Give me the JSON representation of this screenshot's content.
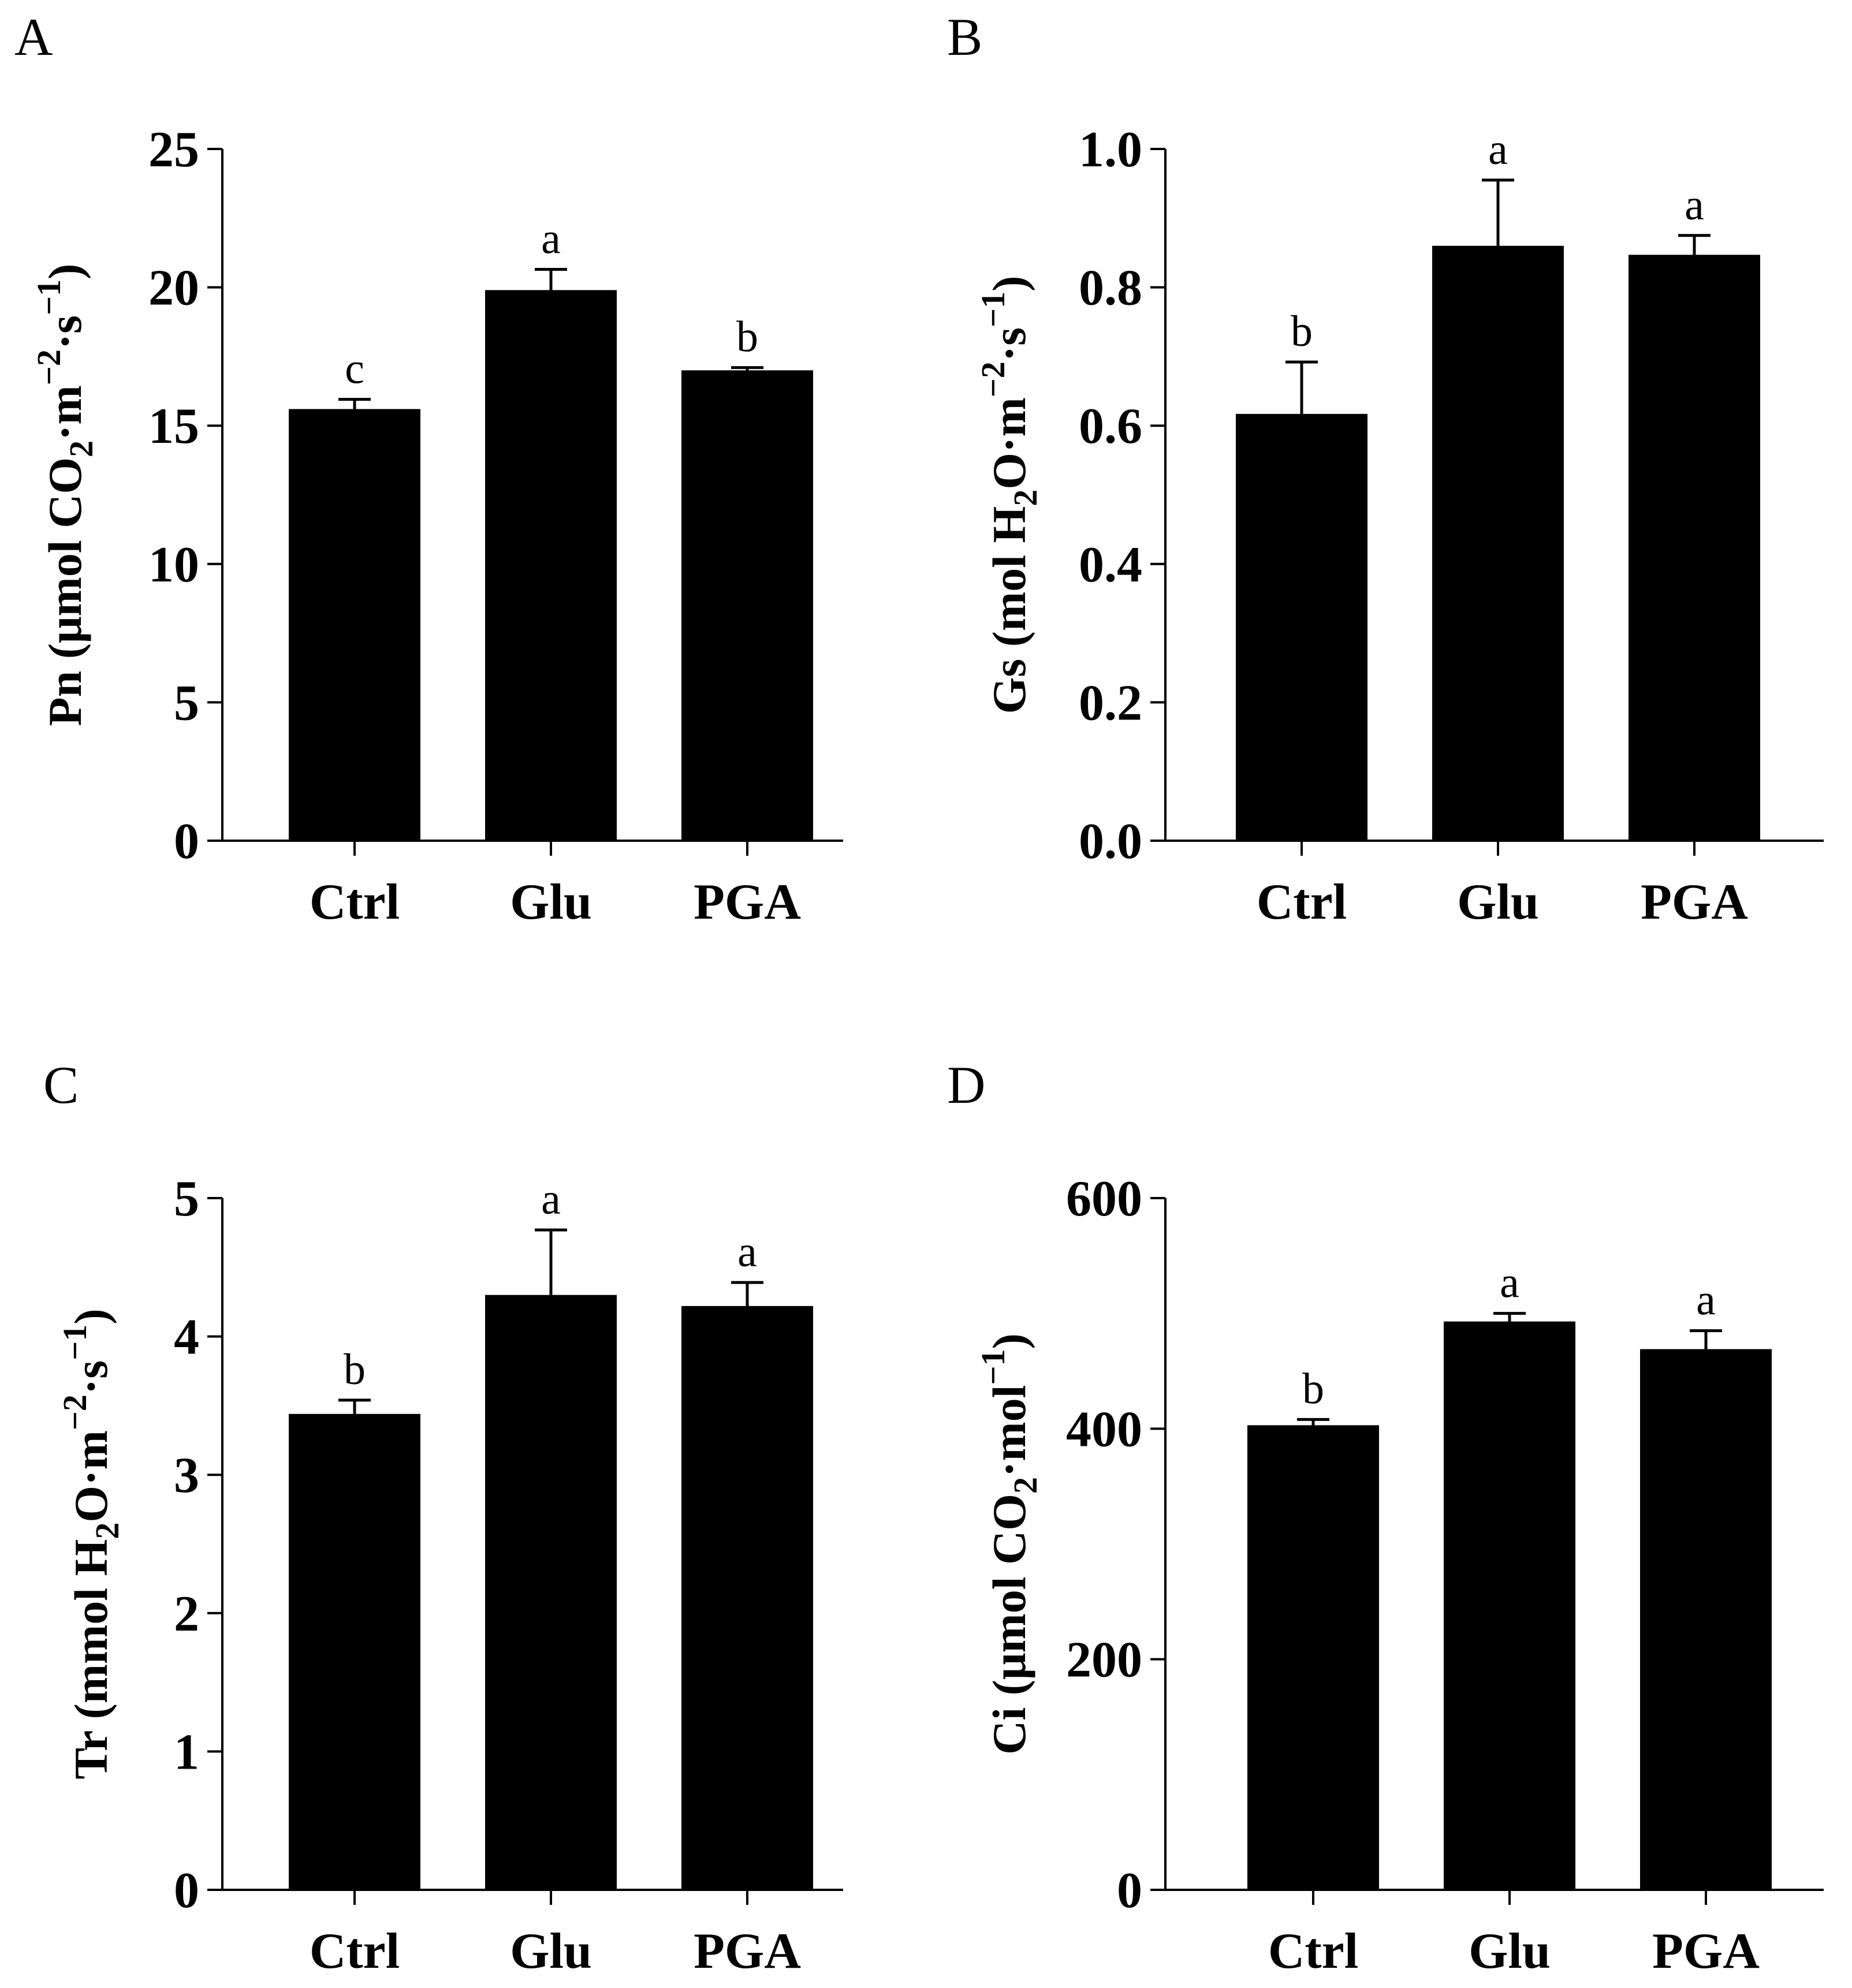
{
  "chart_data": [
    {
      "panel": "A",
      "type": "bar",
      "categories": [
        "Ctrl",
        "Glu",
        "PGA"
      ],
      "values": [
        15.6,
        19.9,
        17.0
      ],
      "errors": [
        0.35,
        0.75,
        0.1
      ],
      "significance": [
        "c",
        "a",
        "b"
      ],
      "ylim": [
        0,
        25
      ],
      "yticks": [
        "0",
        "5",
        "10",
        "15",
        "20",
        "25"
      ],
      "ylabel": {
        "pre": "Pn (μmol CO",
        "sub": "2",
        "mid1": "·m",
        "sup1": "−2",
        "mid2": "·s",
        "sup2": "−1",
        "post": ")"
      }
    },
    {
      "panel": "B",
      "type": "bar",
      "categories": [
        "Ctrl",
        "Glu",
        "PGA"
      ],
      "values": [
        0.617,
        0.86,
        0.847
      ],
      "errors": [
        0.075,
        0.095,
        0.028
      ],
      "significance": [
        "b",
        "a",
        "a"
      ],
      "ylim": [
        0,
        1.0
      ],
      "yticks": [
        "0.0",
        "0.2",
        "0.4",
        "0.6",
        "0.8",
        "1.0"
      ],
      "ylabel": {
        "pre": "Gs (mol H",
        "sub": "2",
        "mid1": "O·m",
        "sup1": "−2",
        "mid2": "·s",
        "sup2": "−1",
        "post": ")"
      }
    },
    {
      "panel": "C",
      "type": "bar",
      "categories": [
        "Ctrl",
        "Glu",
        "PGA"
      ],
      "values": [
        3.44,
        4.3,
        4.22
      ],
      "errors": [
        0.1,
        0.47,
        0.17
      ],
      "significance": [
        "b",
        "a",
        "a"
      ],
      "ylim": [
        0,
        5
      ],
      "yticks": [
        "0",
        "1",
        "2",
        "3",
        "4",
        "5"
      ],
      "ylabel": {
        "pre": "Tr (mmol H",
        "sub": "2",
        "mid1": "O·m",
        "sup1": "−2",
        "mid2": "·s",
        "sup2": "−1",
        "post": ")"
      }
    },
    {
      "panel": "D",
      "type": "bar",
      "categories": [
        "Ctrl",
        "Glu",
        "PGA"
      ],
      "values": [
        403,
        493,
        469
      ],
      "errors": [
        5,
        7,
        16
      ],
      "significance": [
        "b",
        "a",
        "a"
      ],
      "ylim": [
        0,
        600
      ],
      "yticks": [
        "0",
        "200",
        "400",
        "600"
      ],
      "ylabel": {
        "pre": "Ci (μmol CO",
        "sub": "2",
        "mid1": "·mol",
        "sup1": "−1",
        "mid2": "",
        "sup2": "",
        "post": ")"
      }
    }
  ]
}
